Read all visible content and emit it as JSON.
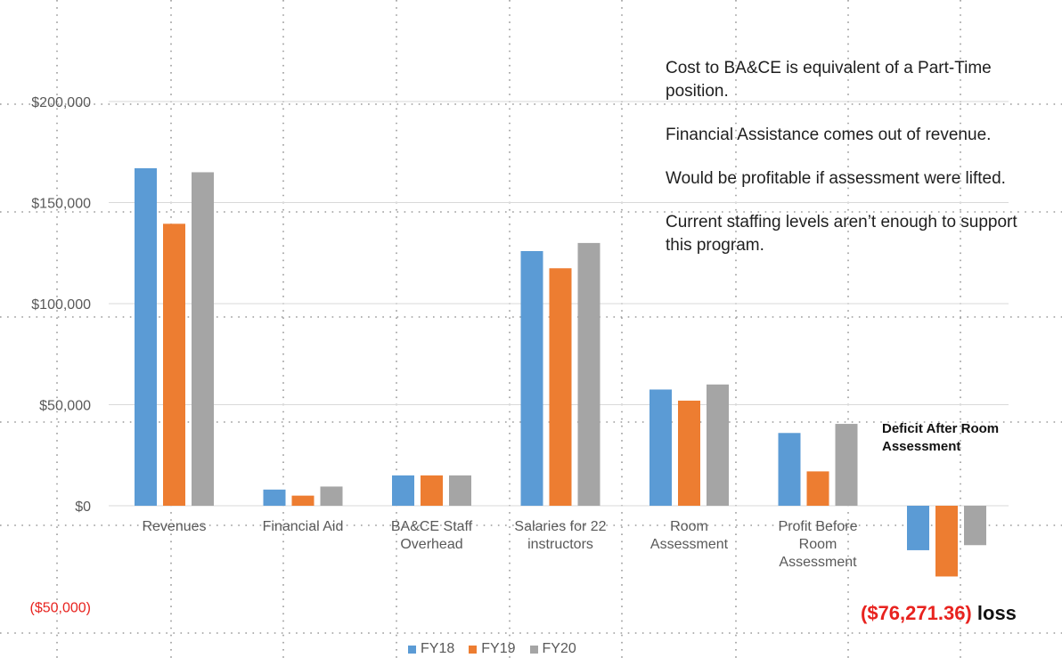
{
  "chart_data": {
    "type": "bar",
    "categories": [
      [
        "Revenues"
      ],
      [
        "Financial Aid"
      ],
      [
        "BA&CE Staff",
        "Overhead"
      ],
      [
        "Salaries for 22",
        "instructors"
      ],
      [
        "Room",
        "Assessment"
      ],
      [
        "Profit Before",
        "Room",
        "Assessment"
      ],
      [
        ""
      ]
    ],
    "series": [
      {
        "name": "FY18",
        "color": "#5b9bd5",
        "values": [
          167000,
          8000,
          15000,
          126000,
          57500,
          36000,
          -22000
        ]
      },
      {
        "name": "FY19",
        "color": "#ed7d31",
        "values": [
          139500,
          5000,
          15000,
          117500,
          52000,
          17000,
          -35000
        ]
      },
      {
        "name": "FY20",
        "color": "#a5a5a5",
        "values": [
          165000,
          9500,
          15000,
          130000,
          60000,
          40500,
          -19500
        ]
      }
    ],
    "yticks": [
      {
        "value": 200000,
        "label": "$200,000"
      },
      {
        "value": 150000,
        "label": "$150,000"
      },
      {
        "value": 100000,
        "label": "$100,000"
      },
      {
        "value": 50000,
        "label": "$50,000"
      },
      {
        "value": 0,
        "label": "$0"
      },
      {
        "value": -50000,
        "label": "($50,000)"
      }
    ],
    "ylim": [
      -50000,
      200000
    ],
    "grid": true,
    "legend": "bottom",
    "title": "",
    "xlabel": "",
    "ylabel": ""
  },
  "notes": [
    "Cost to BA&CE is equivalent of a Part-Time position.",
    "Financial Assistance comes out of revenue.",
    "Would be profitable if assessment were lifted.",
    "Current staffing levels aren’t enough to support this program."
  ],
  "deficit_label": "Deficit After Room Assessment",
  "loss_amount": "($76,271.36)",
  "loss_word": "loss"
}
